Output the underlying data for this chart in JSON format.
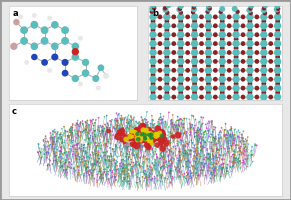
{
  "bg_color": "#e8e8e8",
  "border_color": "#999999",
  "label_a": "a",
  "label_b": "b",
  "label_c": "c",
  "teal": "#5bbcbc",
  "teal_dark": "#3a9a9a",
  "blue": "#2244bb",
  "blue_dark": "#1133aa",
  "pink": "#c8a0a0",
  "white_atom": "#e8e8e8",
  "red_atom": "#cc2222",
  "dark_red": "#882222",
  "yellow": "#ddcc00",
  "purple": "#aa55cc",
  "green_lipid": "#44bb88",
  "magenta": "#cc44aa",
  "orange": "#cc7733",
  "blue_lipid": "#4477cc",
  "cyan_lipid": "#44aaaa",
  "bond_color": "#aaaaaa"
}
